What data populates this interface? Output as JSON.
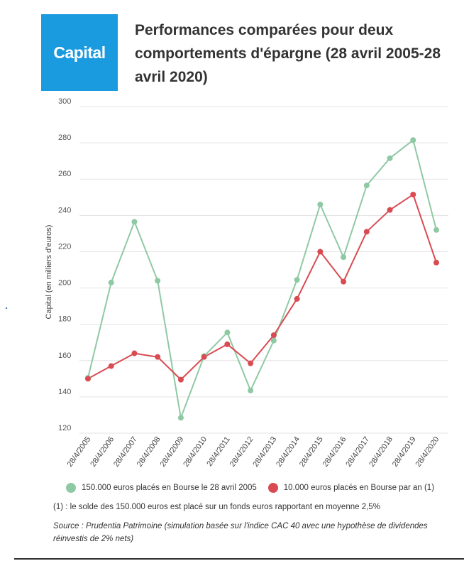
{
  "logo": {
    "text": "Capital"
  },
  "title": "Performances comparées pour deux comportements d'épargne (28 avril 2005-28 avril 2020)",
  "chart_data": {
    "type": "line",
    "ylabel": "Capital (en milliers d'euros)",
    "xlabel": "",
    "ylim": [
      120,
      300
    ],
    "yticks": [
      120,
      140,
      160,
      180,
      200,
      220,
      240,
      260,
      280,
      300
    ],
    "grid": true,
    "categories": [
      "28/4/2005",
      "28/4/2006",
      "28/4/2007",
      "28/4/2008",
      "28/4/2009",
      "28/4/2010",
      "28/4/2011",
      "28/4/2012",
      "28/4/2013",
      "28/4/2014",
      "28/4/2015",
      "28/4/2016",
      "28/4/2017",
      "28/4/2018",
      "28/4/2019",
      "28/4/2020"
    ],
    "series": [
      {
        "name": "150.000 euros placés en Bourse le 28 avril 2005",
        "color": "#8fc9a4",
        "values": [
          150.5,
          203,
          236.5,
          204,
          128.5,
          162.5,
          175.5,
          143.5,
          171,
          204.5,
          246,
          217,
          256.5,
          271.5,
          281.5,
          232
        ]
      },
      {
        "name": "10.000 euros placés en Bourse par an (1)",
        "color": "#d94b52",
        "values": [
          150,
          157,
          164,
          162,
          149.5,
          162,
          169,
          158.5,
          174,
          194,
          220,
          203.5,
          231,
          243,
          251.5,
          214
        ]
      }
    ],
    "legend_position": "bottom"
  },
  "note": "(1) : le solde des 150.000 euros est placé sur un fonds euros rapportant en moyenne 2,5%",
  "source": "Source : Prudentia Patrimoine (simulation basée sur l'indice CAC 40 avec une hypothèse de dividendes réinvestis de 2% nets)"
}
